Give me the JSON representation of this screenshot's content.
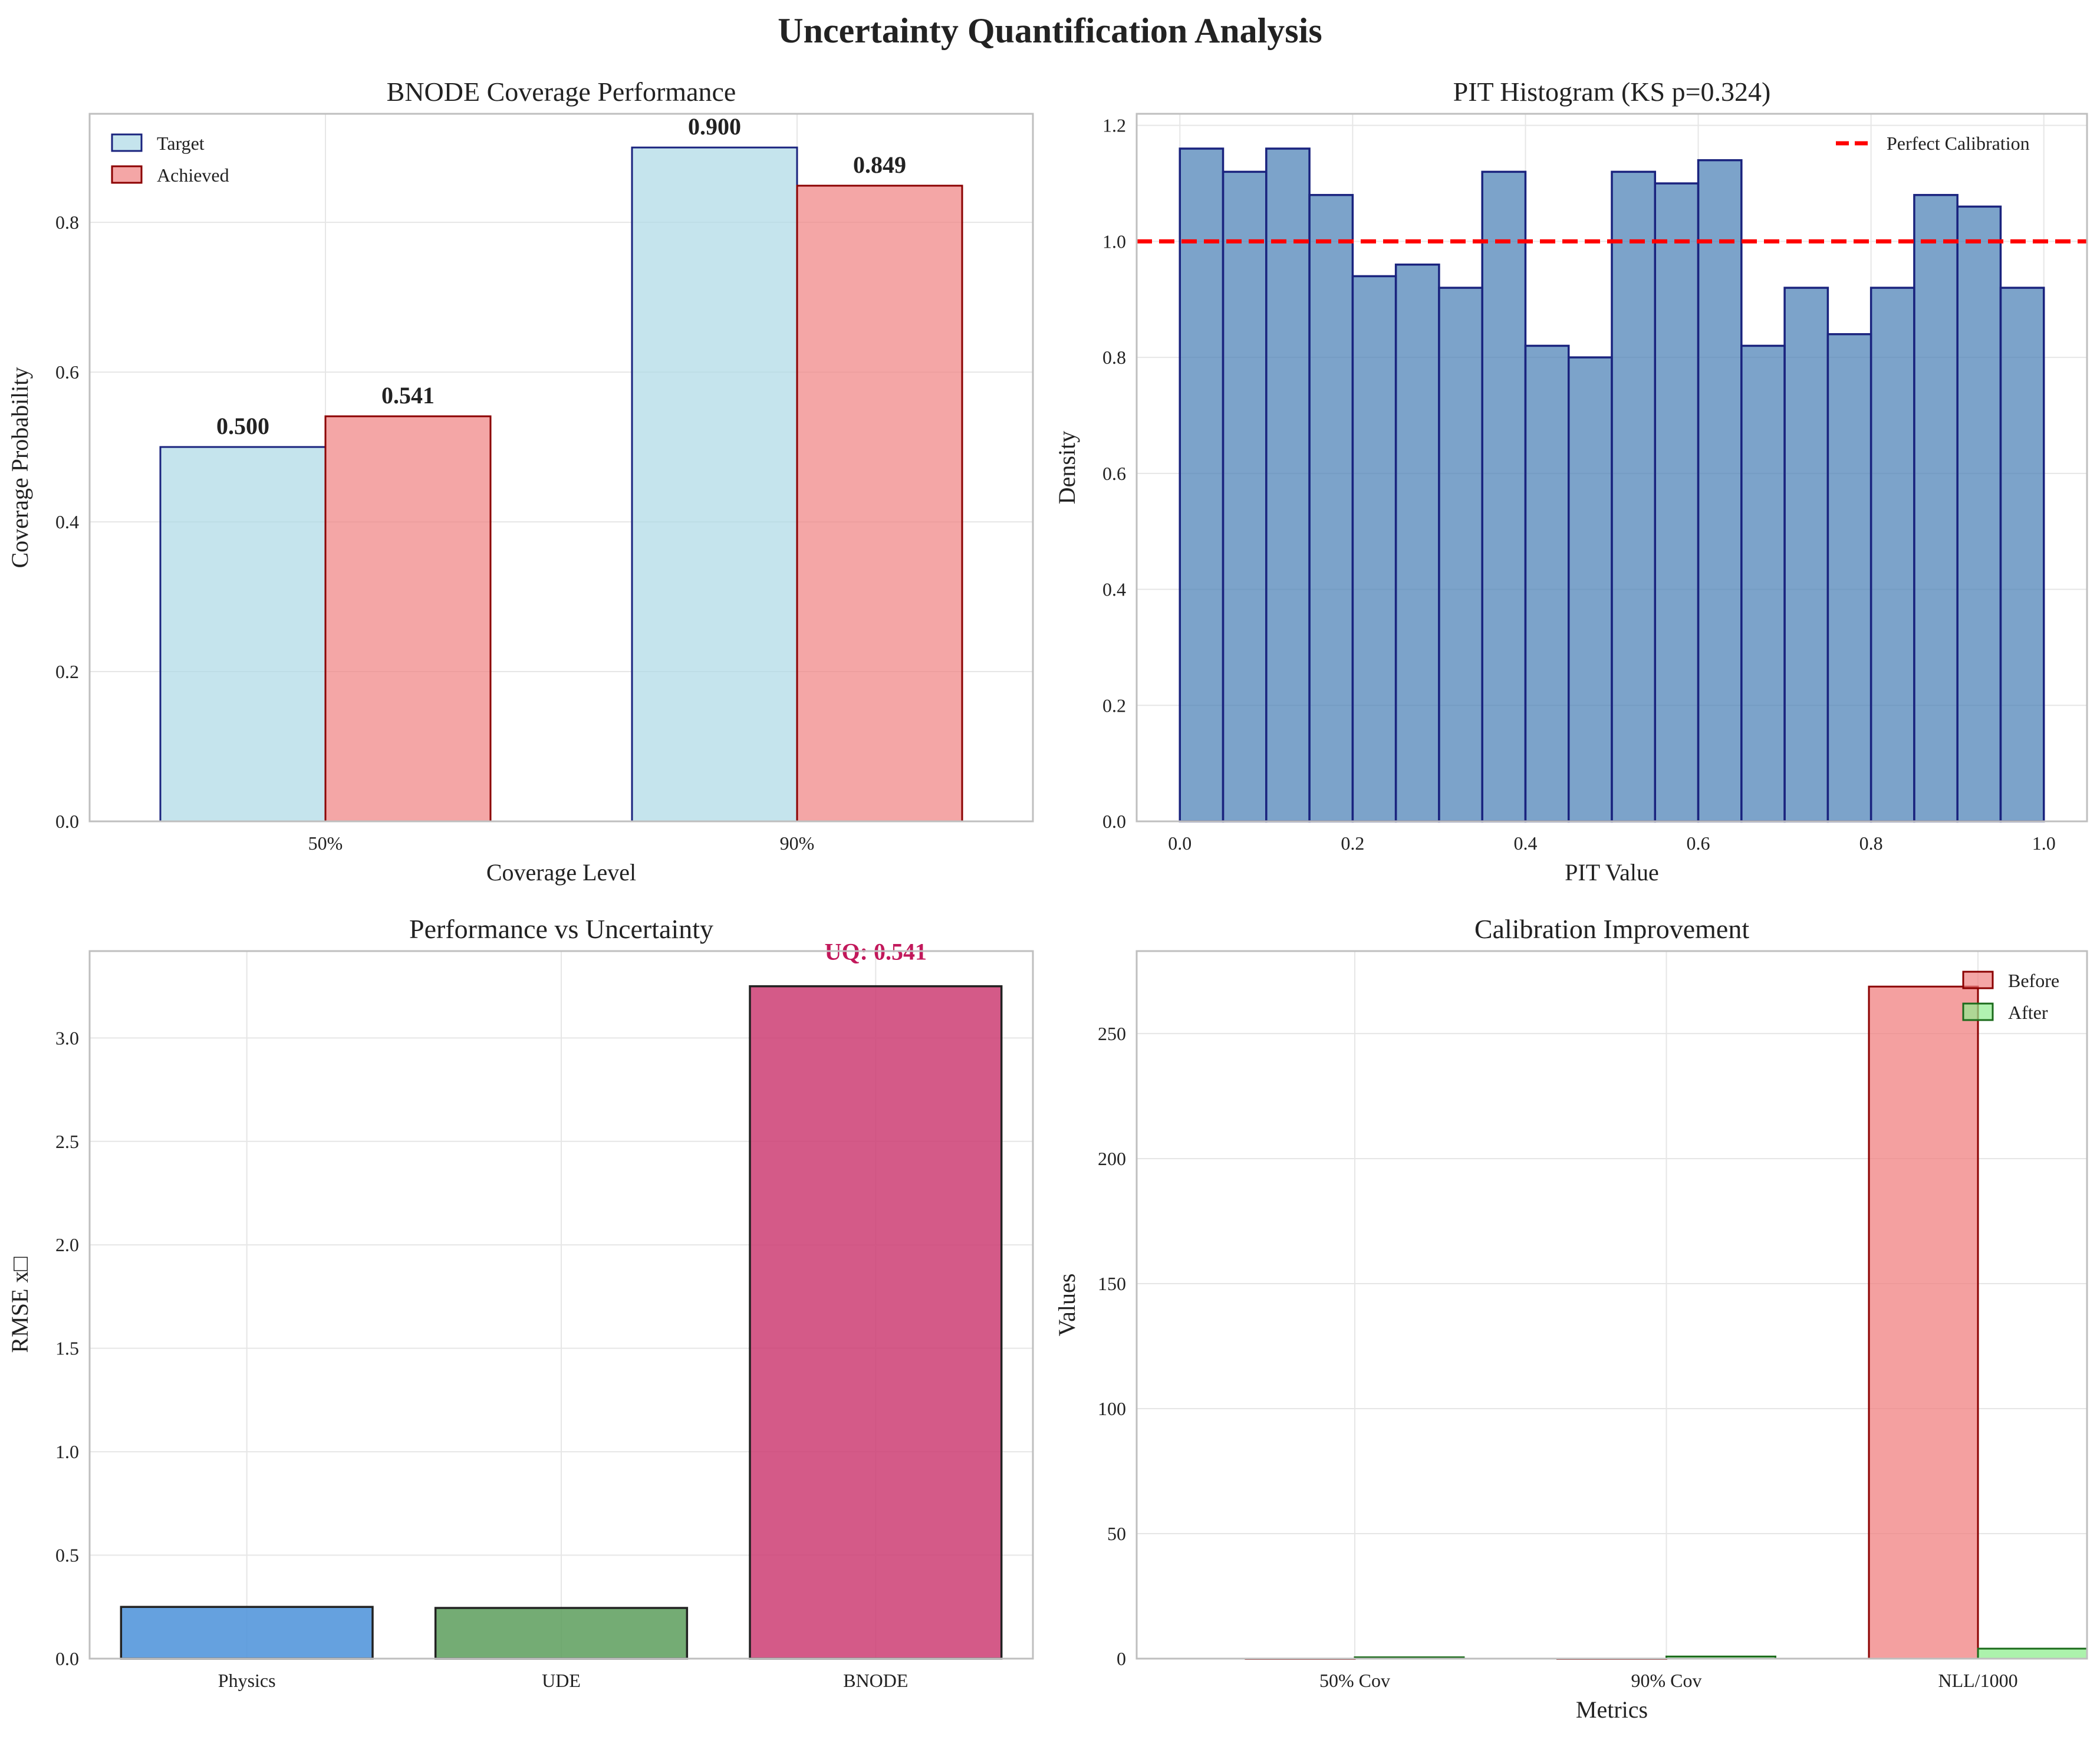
{
  "figure": {
    "suptitle": "Uncertainty Quantification Analysis"
  },
  "chart_data": [
    {
      "type": "bar",
      "title": "BNODE Coverage Performance",
      "xlabel": "Coverage Level",
      "ylabel": "Coverage Probability",
      "categories": [
        "50%",
        "90%"
      ],
      "series": [
        {
          "name": "Target",
          "values": [
            0.5,
            0.9
          ],
          "labels": [
            "0.500",
            "0.900"
          ],
          "color": "#add8e6",
          "edge": "#1a237e"
        },
        {
          "name": "Achieved",
          "values": [
            0.541,
            0.849
          ],
          "labels": [
            "0.541",
            "0.849"
          ],
          "color": "#f08080",
          "edge": "#8b0000"
        }
      ],
      "ylim": [
        0,
        0.945
      ],
      "yticks": [
        "0.0",
        "0.2",
        "0.4",
        "0.6",
        "0.8"
      ],
      "ytick_values": [
        0,
        0.2,
        0.4,
        0.6,
        0.8
      ],
      "legend": "top-left",
      "grid": true
    },
    {
      "type": "bar",
      "title": "PIT Histogram (KS p=0.324)",
      "xlabel": "PIT Value",
      "ylabel": "Density",
      "bin_edges": [
        0.0,
        0.05,
        0.1,
        0.15,
        0.2,
        0.25,
        0.3,
        0.35,
        0.4,
        0.45,
        0.5,
        0.55,
        0.6,
        0.65,
        0.7,
        0.75,
        0.8,
        0.85,
        0.9,
        0.95,
        1.0
      ],
      "values": [
        1.16,
        1.12,
        1.16,
        1.08,
        0.94,
        0.96,
        0.92,
        1.12,
        0.82,
        0.8,
        1.12,
        1.1,
        1.14,
        0.82,
        0.92,
        0.84,
        0.92,
        1.08,
        1.06,
        0.92
      ],
      "color": "#4a7fb5",
      "edge": "#1a237e",
      "reference_line": {
        "name": "Perfect Calibration",
        "y": 1.0,
        "color": "#ff0000",
        "style": "dashed"
      },
      "xlim": [
        -0.05,
        1.05
      ],
      "ylim": [
        0,
        1.22
      ],
      "xticks": [
        "0.0",
        "0.2",
        "0.4",
        "0.6",
        "0.8",
        "1.0"
      ],
      "xtick_values": [
        0,
        0.2,
        0.4,
        0.6,
        0.8,
        1.0
      ],
      "yticks": [
        "0.0",
        "0.2",
        "0.4",
        "0.6",
        "0.8",
        "1.0",
        "1.2"
      ],
      "ytick_values": [
        0,
        0.2,
        0.4,
        0.6,
        0.8,
        1.0,
        1.2
      ],
      "legend": "top-right",
      "grid": true
    },
    {
      "type": "bar",
      "title": "Performance vs Uncertainty",
      "xlabel": "",
      "ylabel": "RMSE x□",
      "categories": [
        "Physics",
        "UDE",
        "BNODE"
      ],
      "values": [
        0.25,
        0.245,
        3.25
      ],
      "colors": [
        "#4a90d9",
        "#5c9e5c",
        "#cc3d73"
      ],
      "edge": "#222222",
      "annotation": {
        "text": "UQ: 0.541",
        "category": "BNODE",
        "color": "#c2185b"
      },
      "ylim": [
        0,
        3.42
      ],
      "yticks": [
        "0.0",
        "0.5",
        "1.0",
        "1.5",
        "2.0",
        "2.5",
        "3.0"
      ],
      "ytick_values": [
        0,
        0.5,
        1.0,
        1.5,
        2.0,
        2.5,
        3.0
      ],
      "grid": true
    },
    {
      "type": "bar",
      "title": "Calibration Improvement",
      "xlabel": "Metrics",
      "ylabel": "Values",
      "categories": [
        "50% Cov",
        "90% Cov",
        "NLL/1000"
      ],
      "series": [
        {
          "name": "Before",
          "values": [
            0.0,
            0.0,
            268.8
          ],
          "color": "#f08080",
          "edge": "#8b0000"
        },
        {
          "name": "After",
          "values": [
            0.54,
            0.85,
            4.0
          ],
          "color": "#90ee90",
          "edge": "#1b6b1b"
        }
      ],
      "ylim": [
        0,
        283
      ],
      "yticks": [
        "0",
        "50",
        "100",
        "150",
        "200",
        "250"
      ],
      "ytick_values": [
        0,
        50,
        100,
        150,
        200,
        250
      ],
      "legend": "top-right",
      "grid": true
    }
  ]
}
